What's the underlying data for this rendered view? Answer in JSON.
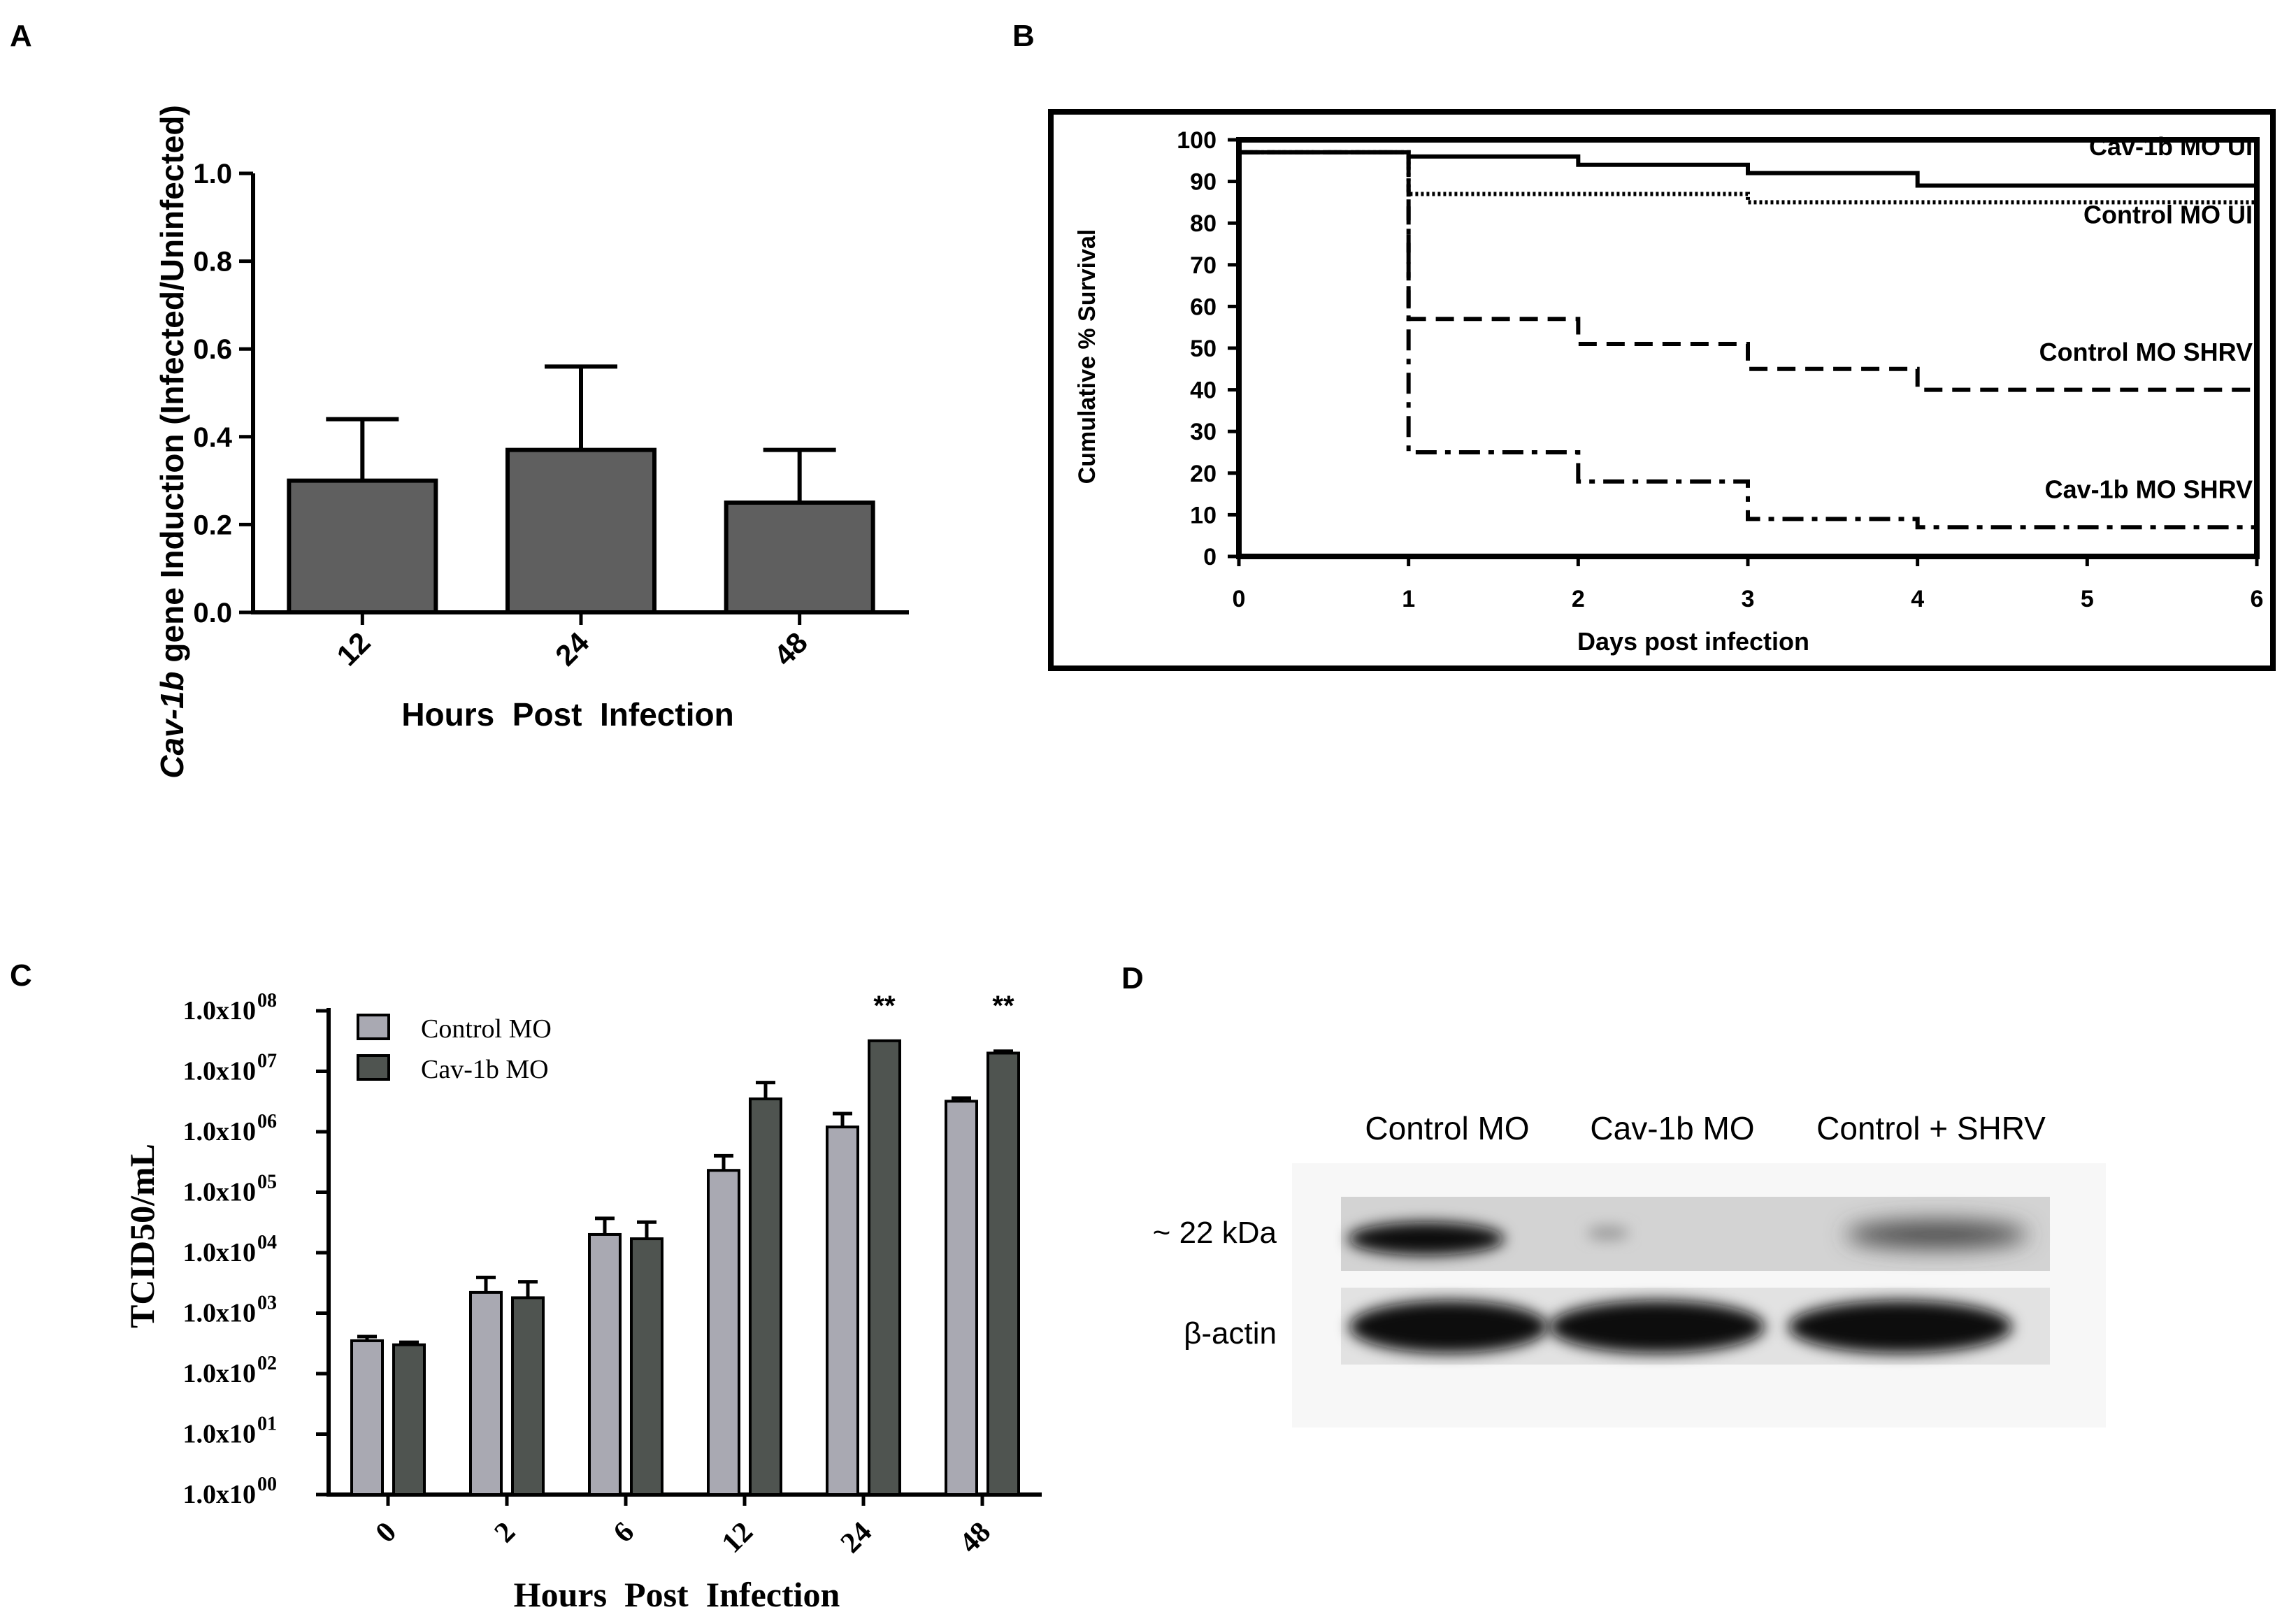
{
  "panels": {
    "A": "A",
    "B": "B",
    "C": "C",
    "D": "D"
  },
  "chart_data": [
    {
      "id": "A",
      "type": "bar",
      "categories": [
        "12",
        "24",
        "48"
      ],
      "values": [
        0.3,
        0.37,
        0.25
      ],
      "errors": [
        0.14,
        0.19,
        0.12
      ],
      "ylabel_italic": "Cav-1b",
      "ylabel_rest": " gene Induction (Infected/Uninfected)",
      "xlabel": "Hours  Post  Infection",
      "ylim": [
        0,
        1.0
      ],
      "yticks": [
        "0.0",
        "0.2",
        "0.4",
        "0.6",
        "0.8",
        "1.0"
      ],
      "bar_color": "#5f5f5f"
    },
    {
      "id": "B",
      "type": "line",
      "xlabel": "Days post infection",
      "ylabel": "Cumulative % Survival",
      "xlim": [
        0,
        6
      ],
      "ylim": [
        0,
        100
      ],
      "xticks": [
        "0",
        "1",
        "2",
        "3",
        "4",
        "5",
        "6"
      ],
      "yticks": [
        "0",
        "10",
        "20",
        "30",
        "40",
        "50",
        "60",
        "70",
        "80",
        "90",
        "100"
      ],
      "series": [
        {
          "name": "Cav-1b MO UI",
          "style": "solid",
          "x": [
            0,
            1,
            1,
            2,
            2,
            3,
            3,
            4,
            4,
            6
          ],
          "y": [
            97,
            97,
            96,
            96,
            94,
            94,
            92,
            92,
            89,
            89
          ]
        },
        {
          "name": "Control MO UI",
          "style": "dotted",
          "x": [
            0,
            1,
            1,
            3,
            3,
            6
          ],
          "y": [
            97,
            97,
            87,
            87,
            85,
            85
          ]
        },
        {
          "name": "Control MO SHRV",
          "style": "dashed",
          "x": [
            0,
            1,
            1,
            2,
            2,
            3,
            3,
            4,
            4,
            6
          ],
          "y": [
            97,
            97,
            57,
            57,
            51,
            51,
            45,
            45,
            40,
            40
          ]
        },
        {
          "name": "Cav-1b MO SHRV",
          "style": "dashdot",
          "x": [
            0,
            1,
            1,
            2,
            2,
            3,
            3,
            4,
            4,
            6
          ],
          "y": [
            97,
            97,
            25,
            25,
            18,
            18,
            9,
            9,
            7,
            7
          ]
        }
      ]
    },
    {
      "id": "C",
      "type": "bar",
      "log_scale": true,
      "categories": [
        "0",
        "2",
        "6",
        "12",
        "24",
        "48"
      ],
      "xlabel": "Hours  Post  Infection",
      "ylabel": "TCID50/mL",
      "ylim": [
        1,
        100000000
      ],
      "ytick_base": "1.0x10",
      "ytick_exponents": [
        "00",
        "01",
        "02",
        "03",
        "04",
        "05",
        "06",
        "07",
        "08"
      ],
      "series": [
        {
          "name": "Control MO",
          "color": "#a9a9b2",
          "values": [
            350,
            2200,
            20000,
            230000,
            1200000,
            3200000
          ],
          "errors": [
            60,
            1700,
            17000,
            170000,
            800000,
            400000
          ]
        },
        {
          "name": "Cav-1b MO",
          "color": "#4f5450",
          "values": [
            300,
            1800,
            17000,
            3500000,
            32000000,
            20000000
          ],
          "errors": [
            30,
            1500,
            15000,
            3000000,
            0,
            1500000
          ]
        }
      ],
      "annotations": [
        {
          "category": "24",
          "text": "**"
        },
        {
          "category": "48",
          "text": "**"
        }
      ]
    }
  ],
  "blot": {
    "lanes": [
      "Control MO",
      "Cav-1b MO",
      "Control + SHRV"
    ],
    "rows": [
      "~ 22 kDa",
      "β-actin"
    ]
  }
}
